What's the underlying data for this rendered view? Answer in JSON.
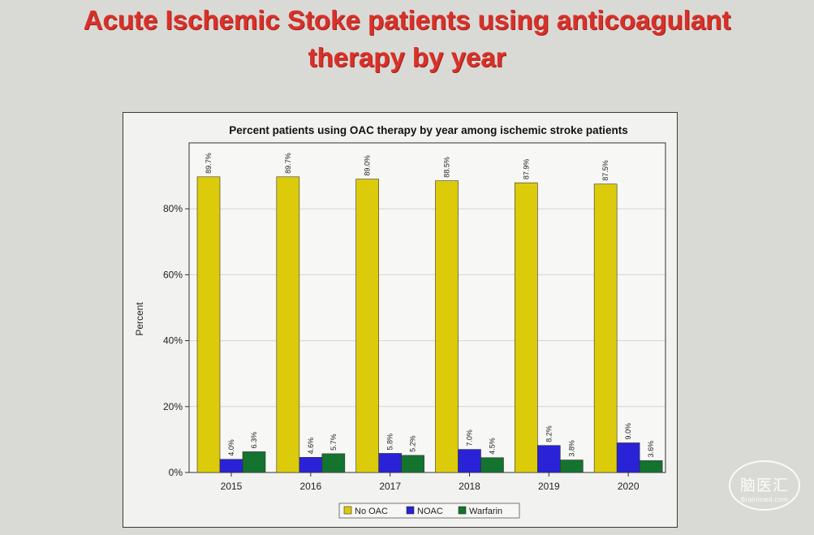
{
  "slide": {
    "title_line1": "Acute Ischemic Stoke patients using anticoagulant",
    "title_line2": "therapy by year",
    "title_color": "#d8312a",
    "watermark_main": "脑医汇",
    "watermark_sub": "Brainmed.com"
  },
  "chart_data": {
    "type": "bar",
    "title": "Percent patients using OAC therapy by year among ischemic stroke patients",
    "xlabel": "",
    "ylabel": "Percent",
    "categories": [
      "2015",
      "2016",
      "2017",
      "2018",
      "2019",
      "2020"
    ],
    "series": [
      {
        "name": "No OAC",
        "color": "#dccb0a",
        "values": [
          89.7,
          89.7,
          89.0,
          88.5,
          87.9,
          87.5
        ],
        "labels": [
          "89.7%",
          "89.7%",
          "89.0%",
          "88.5%",
          "87.9%",
          "87.5%"
        ]
      },
      {
        "name": "NOAC",
        "color": "#2a22d6",
        "values": [
          4.0,
          4.6,
          5.8,
          7.0,
          8.2,
          9.0
        ],
        "labels": [
          "4.0%",
          "4.6%",
          "5.8%",
          "7.0%",
          "8.2%",
          "9.0%"
        ]
      },
      {
        "name": "Warfarin",
        "color": "#14732f",
        "values": [
          6.3,
          5.7,
          5.2,
          4.5,
          3.8,
          3.6
        ],
        "labels": [
          "6.3%",
          "5.7%",
          "5.2%",
          "4.5%",
          "3.8%",
          "3.6%"
        ]
      }
    ],
    "yticks": [
      0,
      20,
      40,
      60,
      80
    ],
    "ytick_labels": [
      "0%",
      "20%",
      "40%",
      "60%",
      "80%"
    ],
    "ylim": [
      0,
      100
    ],
    "grid": true,
    "legend_position": "bottom"
  }
}
